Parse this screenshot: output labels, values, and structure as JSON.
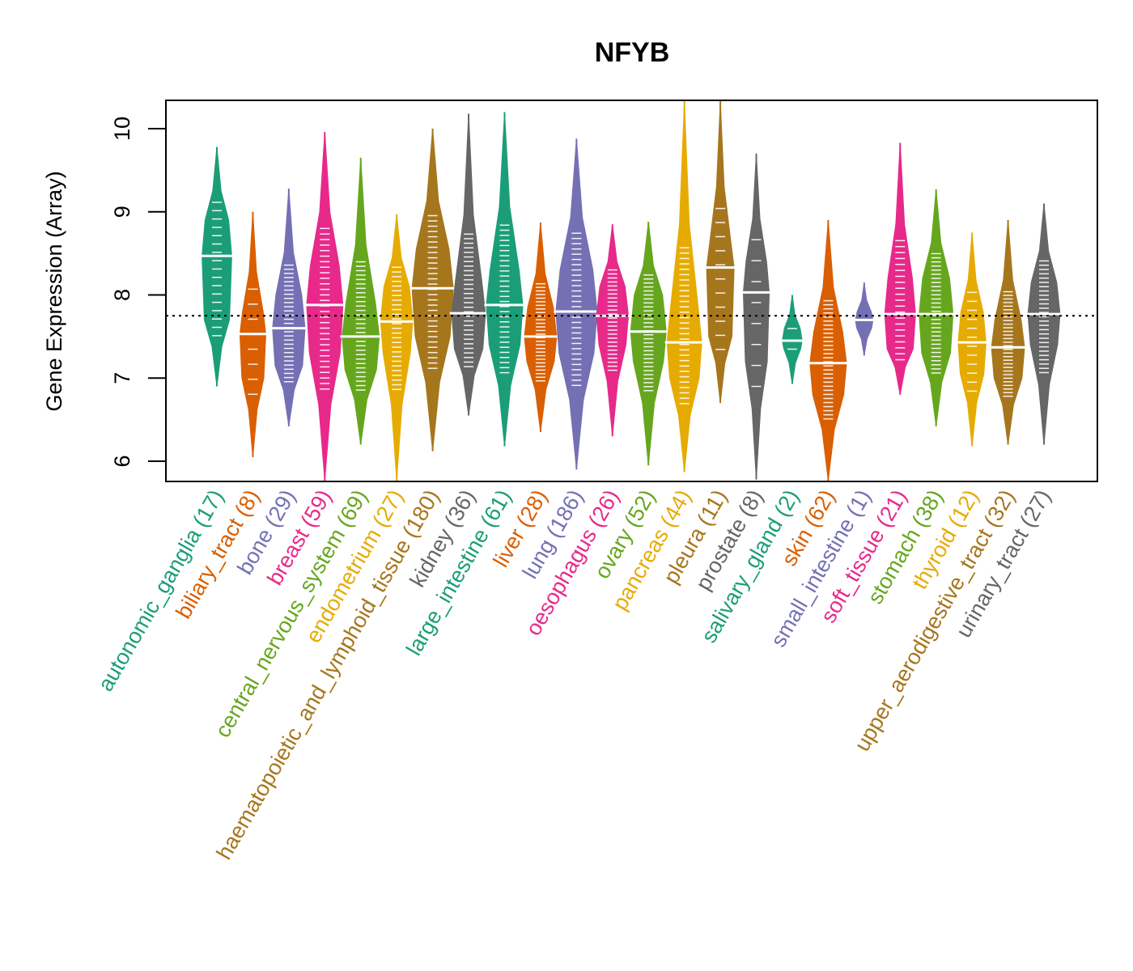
{
  "chart_data": {
    "type": "violin",
    "title": "NFYB",
    "xlabel": "",
    "ylabel": "Gene Expression (Array)",
    "ylim": [
      5.75,
      10.35
    ],
    "yticks": [
      6,
      7,
      8,
      9,
      10
    ],
    "reference_line": 7.75,
    "grid": false,
    "legend": "none",
    "categories": [
      {
        "name": "autonomic_ganglia",
        "n": 17,
        "color": "#1b9e77",
        "median": 8.47,
        "q1": 7.7,
        "q3": 8.9,
        "min": 6.9,
        "max": 9.78
      },
      {
        "name": "biliary_tract",
        "n": 8,
        "color": "#d95f02",
        "median": 7.53,
        "q1": 7.0,
        "q3": 7.8,
        "min": 6.05,
        "max": 9.0
      },
      {
        "name": "bone",
        "n": 29,
        "color": "#7570b3",
        "median": 7.6,
        "q1": 7.15,
        "q3": 8.0,
        "min": 6.42,
        "max": 9.28
      },
      {
        "name": "breast",
        "n": 59,
        "color": "#e7298a",
        "median": 7.88,
        "q1": 7.3,
        "q3": 8.35,
        "min": 5.75,
        "max": 9.96
      },
      {
        "name": "central_nervous_system",
        "n": 69,
        "color": "#66a61e",
        "median": 7.5,
        "q1": 7.1,
        "q3": 7.9,
        "min": 6.2,
        "max": 9.65
      },
      {
        "name": "endometrium",
        "n": 27,
        "color": "#e6ab02",
        "median": 7.68,
        "q1": 7.3,
        "q3": 8.1,
        "min": 5.75,
        "max": 8.97
      },
      {
        "name": "haematopoietic_and_lymphoid_tissue",
        "n": 180,
        "color": "#a6761d",
        "median": 8.08,
        "q1": 7.5,
        "q3": 8.55,
        "min": 6.12,
        "max": 10.0
      },
      {
        "name": "kidney",
        "n": 36,
        "color": "#666666",
        "median": 7.78,
        "q1": 7.35,
        "q3": 8.15,
        "min": 6.55,
        "max": 10.18
      },
      {
        "name": "large_intestine",
        "n": 61,
        "color": "#1b9e77",
        "median": 7.88,
        "q1": 7.4,
        "q3": 8.3,
        "min": 6.18,
        "max": 10.2
      },
      {
        "name": "liver",
        "n": 28,
        "color": "#d95f02",
        "median": 7.5,
        "q1": 7.2,
        "q3": 7.85,
        "min": 6.35,
        "max": 8.87
      },
      {
        "name": "lung",
        "n": 186,
        "color": "#7570b3",
        "median": 7.8,
        "q1": 7.3,
        "q3": 8.3,
        "min": 5.9,
        "max": 9.88
      },
      {
        "name": "oesophagus",
        "n": 26,
        "color": "#e7298a",
        "median": 7.75,
        "q1": 7.4,
        "q3": 8.1,
        "min": 6.3,
        "max": 8.85
      },
      {
        "name": "ovary",
        "n": 52,
        "color": "#66a61e",
        "median": 7.56,
        "q1": 7.2,
        "q3": 8.0,
        "min": 5.95,
        "max": 8.88
      },
      {
        "name": "pancreas",
        "n": 44,
        "color": "#e6ab02",
        "median": 7.43,
        "q1": 7.0,
        "q3": 7.85,
        "min": 5.87,
        "max": 10.35
      },
      {
        "name": "pleura",
        "n": 11,
        "color": "#a6761d",
        "median": 8.33,
        "q1": 7.5,
        "q3": 8.6,
        "min": 6.7,
        "max": 10.35
      },
      {
        "name": "prostate",
        "n": 8,
        "color": "#666666",
        "median": 8.03,
        "q1": 7.2,
        "q3": 8.4,
        "min": 5.78,
        "max": 9.7
      },
      {
        "name": "salivary_gland",
        "n": 2,
        "color": "#1b9e77",
        "median": 7.45,
        "q1": 7.35,
        "q3": 7.6,
        "min": 6.93,
        "max": 8.0
      },
      {
        "name": "skin",
        "n": 62,
        "color": "#d95f02",
        "median": 7.18,
        "q1": 6.8,
        "q3": 7.55,
        "min": 5.75,
        "max": 8.9
      },
      {
        "name": "small_intestine",
        "n": 1,
        "color": "#7570b3",
        "median": 7.7,
        "q1": 7.6,
        "q3": 7.8,
        "min": 7.27,
        "max": 8.15
      },
      {
        "name": "soft_tissue",
        "n": 21,
        "color": "#e7298a",
        "median": 7.77,
        "q1": 7.35,
        "q3": 8.2,
        "min": 6.8,
        "max": 9.83
      },
      {
        "name": "stomach",
        "n": 38,
        "color": "#66a61e",
        "median": 7.77,
        "q1": 7.3,
        "q3": 8.2,
        "min": 6.42,
        "max": 9.27
      },
      {
        "name": "thyroid",
        "n": 12,
        "color": "#e6ab02",
        "median": 7.43,
        "q1": 7.05,
        "q3": 7.8,
        "min": 6.18,
        "max": 8.75
      },
      {
        "name": "upper_aerodigestive_tract",
        "n": 32,
        "color": "#a6761d",
        "median": 7.37,
        "q1": 7.0,
        "q3": 7.7,
        "min": 6.2,
        "max": 8.9
      },
      {
        "name": "urinary_tract",
        "n": 27,
        "color": "#666666",
        "median": 7.77,
        "q1": 7.4,
        "q3": 8.15,
        "min": 6.2,
        "max": 9.1
      }
    ]
  }
}
